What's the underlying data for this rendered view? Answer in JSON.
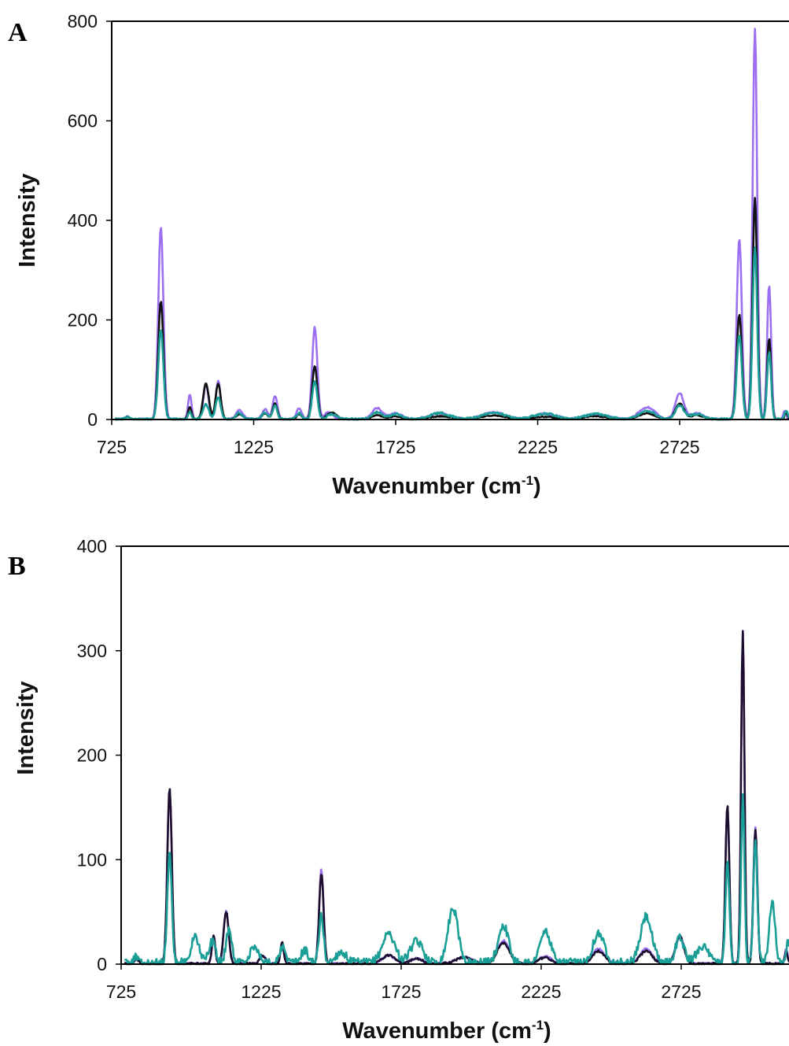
{
  "chart_data": [
    {
      "type": "line",
      "panel": "A",
      "xlabel": "Wavenumber (cm",
      "xlabel_sup": "-1",
      "xlabel_close": ")",
      "ylabel": "Intensity",
      "xlim": [
        725,
        3110
      ],
      "ylim": [
        0,
        800
      ],
      "xticks": [
        725,
        1225,
        1725,
        2225,
        2725
      ],
      "yticks": [
        0,
        200,
        400,
        600,
        800
      ],
      "series": [
        {
          "color": "#9b6ff0",
          "peaks": [
            [
              780,
              6,
              8
            ],
            [
              898,
              385,
              9
            ],
            [
              1000,
              50,
              6
            ],
            [
              1057,
              70,
              9
            ],
            [
              1100,
              78,
              8
            ],
            [
              1175,
              18,
              12
            ],
            [
              1265,
              20,
              10
            ],
            [
              1300,
              47,
              8
            ],
            [
              1385,
              22,
              9
            ],
            [
              1440,
              185,
              9
            ],
            [
              1490,
              15,
              14
            ],
            [
              1660,
              22,
              18
            ],
            [
              1725,
              12,
              22
            ],
            [
              1880,
              12,
              35
            ],
            [
              2070,
              14,
              40
            ],
            [
              2250,
              11,
              40
            ],
            [
              2430,
              10,
              40
            ],
            [
              2610,
              24,
              28
            ],
            [
              2725,
              52,
              15
            ],
            [
              2785,
              12,
              22
            ],
            [
              2935,
              362,
              9
            ],
            [
              2990,
              785,
              8
            ],
            [
              3040,
              270,
              7
            ],
            [
              3095,
              18,
              5
            ]
          ],
          "noise": 3
        },
        {
          "color": "#111111",
          "peaks": [
            [
              780,
              5,
              8
            ],
            [
              898,
              238,
              9
            ],
            [
              1000,
              25,
              6
            ],
            [
              1057,
              72,
              10
            ],
            [
              1100,
              72,
              9
            ],
            [
              1175,
              10,
              12
            ],
            [
              1265,
              12,
              10
            ],
            [
              1300,
              32,
              8
            ],
            [
              1385,
              10,
              9
            ],
            [
              1440,
              108,
              9
            ],
            [
              1500,
              14,
              16
            ],
            [
              1660,
              8,
              18
            ],
            [
              1725,
              6,
              22
            ],
            [
              1880,
              6,
              35
            ],
            [
              2070,
              8,
              40
            ],
            [
              2250,
              5,
              40
            ],
            [
              2430,
              6,
              40
            ],
            [
              2610,
              12,
              28
            ],
            [
              2725,
              32,
              15
            ],
            [
              2785,
              8,
              22
            ],
            [
              2935,
              210,
              9
            ],
            [
              2990,
              445,
              8
            ],
            [
              3040,
              163,
              7
            ],
            [
              3100,
              14,
              5
            ]
          ],
          "noise": 2
        },
        {
          "color": "#1a9e96",
          "peaks": [
            [
              780,
              5,
              8
            ],
            [
              898,
              180,
              9
            ],
            [
              1000,
              15,
              6
            ],
            [
              1057,
              30,
              10
            ],
            [
              1100,
              45,
              9
            ],
            [
              1175,
              12,
              12
            ],
            [
              1265,
              14,
              10
            ],
            [
              1300,
              28,
              8
            ],
            [
              1385,
              12,
              9
            ],
            [
              1440,
              75,
              9
            ],
            [
              1500,
              10,
              16
            ],
            [
              1660,
              14,
              18
            ],
            [
              1725,
              10,
              22
            ],
            [
              1880,
              12,
              35
            ],
            [
              2070,
              13,
              40
            ],
            [
              2250,
              11,
              40
            ],
            [
              2430,
              10,
              40
            ],
            [
              2610,
              16,
              28
            ],
            [
              2725,
              28,
              15
            ],
            [
              2785,
              10,
              22
            ],
            [
              2935,
              170,
              9
            ],
            [
              2990,
              345,
              8
            ],
            [
              3040,
              135,
              7
            ],
            [
              3100,
              18,
              5
            ]
          ],
          "noise": 4
        }
      ]
    },
    {
      "type": "line",
      "panel": "B",
      "xlabel": "Wavenumber (cm",
      "xlabel_sup": "-1",
      "xlabel_close": ")",
      "ylabel": "Intensity",
      "xlim": [
        725,
        3110
      ],
      "ylim": [
        0,
        400
      ],
      "xticks": [
        725,
        1225,
        1725,
        2225,
        2725
      ],
      "yticks": [
        0,
        100,
        200,
        300,
        400
      ],
      "series": [
        {
          "color": "#9b6ff0",
          "peaks": [
            [
              780,
              4,
              8
            ],
            [
              898,
              168,
              8
            ],
            [
              1055,
              27,
              6
            ],
            [
              1100,
              50,
              9
            ],
            [
              1230,
              8,
              10
            ],
            [
              1300,
              20,
              6
            ],
            [
              1440,
              90,
              8
            ],
            [
              1680,
              8,
              22
            ],
            [
              1780,
              5,
              22
            ],
            [
              1950,
              6,
              30
            ],
            [
              2090,
              22,
              22
            ],
            [
              2240,
              7,
              22
            ],
            [
              2430,
              14,
              22
            ],
            [
              2600,
              14,
              22
            ],
            [
              2720,
              26,
              15
            ],
            [
              2890,
              152,
              7
            ],
            [
              2945,
              318,
              6
            ],
            [
              2990,
              130,
              7
            ],
            [
              3100,
              14,
              5
            ]
          ],
          "noise": 2
        },
        {
          "color": "#1c0f2e",
          "peaks": [
            [
              780,
              4,
              8
            ],
            [
              898,
              168,
              8
            ],
            [
              1055,
              27,
              6
            ],
            [
              1100,
              50,
              9
            ],
            [
              1230,
              8,
              10
            ],
            [
              1300,
              20,
              6
            ],
            [
              1440,
              86,
              8
            ],
            [
              1680,
              8,
              22
            ],
            [
              1780,
              5,
              22
            ],
            [
              1950,
              6,
              30
            ],
            [
              2090,
              20,
              22
            ],
            [
              2240,
              6,
              22
            ],
            [
              2430,
              12,
              22
            ],
            [
              2600,
              12,
              22
            ],
            [
              2720,
              26,
              15
            ],
            [
              2890,
              152,
              7
            ],
            [
              2945,
              318,
              6
            ],
            [
              2990,
              128,
              7
            ],
            [
              3100,
              12,
              5
            ]
          ],
          "noise": 2
        },
        {
          "color": "#1a9e96",
          "peaks": [
            [
              780,
              5,
              10
            ],
            [
              898,
              105,
              8
            ],
            [
              990,
              25,
              14
            ],
            [
              1050,
              20,
              12
            ],
            [
              1110,
              32,
              10
            ],
            [
              1200,
              16,
              14
            ],
            [
              1300,
              15,
              10
            ],
            [
              1380,
              12,
              12
            ],
            [
              1440,
              45,
              8
            ],
            [
              1510,
              10,
              18
            ],
            [
              1680,
              28,
              22
            ],
            [
              1780,
              20,
              22
            ],
            [
              1910,
              52,
              18
            ],
            [
              2090,
              36,
              18
            ],
            [
              2240,
              30,
              18
            ],
            [
              2430,
              28,
              20
            ],
            [
              2600,
              44,
              20
            ],
            [
              2720,
              24,
              15
            ],
            [
              2800,
              16,
              20
            ],
            [
              2890,
              95,
              7
            ],
            [
              2945,
              160,
              6
            ],
            [
              2990,
              115,
              7
            ],
            [
              3050,
              60,
              10
            ],
            [
              3105,
              20,
              5
            ]
          ],
          "noise": 8
        }
      ]
    }
  ]
}
